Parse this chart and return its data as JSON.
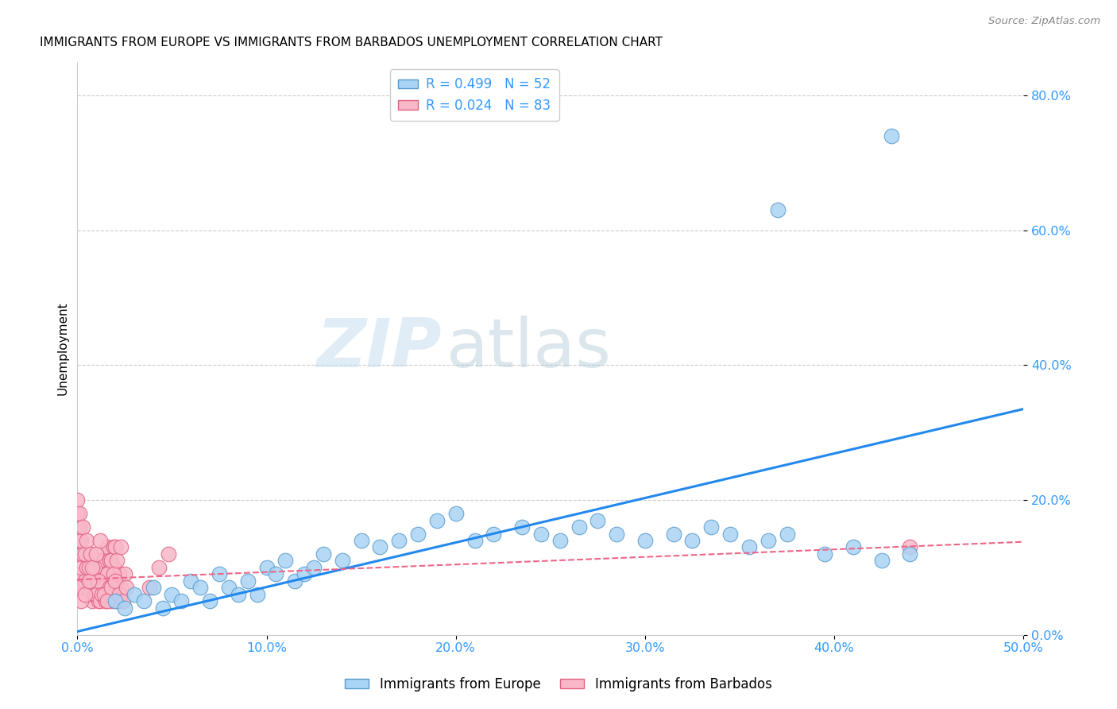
{
  "title": "IMMIGRANTS FROM EUROPE VS IMMIGRANTS FROM BARBADOS UNEMPLOYMENT CORRELATION CHART",
  "source": "Source: ZipAtlas.com",
  "ylabel_label": "Unemployment",
  "xlim": [
    0.0,
    0.5
  ],
  "ylim": [
    0.0,
    0.85
  ],
  "europe_color": "#aad4f5",
  "europe_edge": "#5599cc",
  "barbados_color": "#f9b8c8",
  "barbados_edge": "#e06080",
  "trendline_europe_color": "#2288ee",
  "trendline_barbados_color": "#ee6688",
  "tick_color": "#3399ff",
  "axis_color": "#cccccc",
  "grid_color": "#cccccc",
  "watermark_zip": "ZIP",
  "watermark_atlas": "atlas",
  "europe_trend_x": [
    0.0,
    0.5
  ],
  "europe_trend_y": [
    0.005,
    0.335
  ],
  "barbados_trend_x": [
    0.0,
    0.5
  ],
  "barbados_trend_y": [
    0.082,
    0.138
  ],
  "eu_x": [
    0.02,
    0.025,
    0.03,
    0.035,
    0.04,
    0.045,
    0.05,
    0.055,
    0.06,
    0.065,
    0.07,
    0.075,
    0.08,
    0.085,
    0.09,
    0.095,
    0.1,
    0.105,
    0.11,
    0.115,
    0.12,
    0.125,
    0.13,
    0.14,
    0.15,
    0.16,
    0.17,
    0.18,
    0.19,
    0.2,
    0.21,
    0.22,
    0.235,
    0.245,
    0.255,
    0.265,
    0.275,
    0.285,
    0.3,
    0.315,
    0.325,
    0.335,
    0.345,
    0.355,
    0.365,
    0.375,
    0.395,
    0.41,
    0.425,
    0.44,
    0.37,
    0.43
  ],
  "eu_y": [
    0.05,
    0.04,
    0.06,
    0.05,
    0.07,
    0.04,
    0.06,
    0.05,
    0.08,
    0.07,
    0.05,
    0.09,
    0.07,
    0.06,
    0.08,
    0.06,
    0.1,
    0.09,
    0.11,
    0.08,
    0.09,
    0.1,
    0.12,
    0.11,
    0.14,
    0.13,
    0.14,
    0.15,
    0.17,
    0.18,
    0.14,
    0.15,
    0.16,
    0.15,
    0.14,
    0.16,
    0.17,
    0.15,
    0.14,
    0.15,
    0.14,
    0.16,
    0.15,
    0.13,
    0.14,
    0.15,
    0.12,
    0.13,
    0.11,
    0.12,
    0.63,
    0.74
  ],
  "bar_x": [
    0.0,
    0.002,
    0.003,
    0.005,
    0.007,
    0.009,
    0.011,
    0.013,
    0.015,
    0.017,
    0.019,
    0.021,
    0.023,
    0.0,
    0.001,
    0.002,
    0.004,
    0.006,
    0.008,
    0.01,
    0.012,
    0.014,
    0.016,
    0.018,
    0.02,
    0.022,
    0.0,
    0.001,
    0.003,
    0.005,
    0.007,
    0.009,
    0.011,
    0.013,
    0.015,
    0.017,
    0.019,
    0.021,
    0.023,
    0.025,
    0.0,
    0.001,
    0.002,
    0.004,
    0.006,
    0.008,
    0.01,
    0.012,
    0.014,
    0.016,
    0.018,
    0.02,
    0.022,
    0.0,
    0.001,
    0.003,
    0.005,
    0.007,
    0.009,
    0.011,
    0.013,
    0.015,
    0.017,
    0.019,
    0.021,
    0.023,
    0.0,
    0.002,
    0.004,
    0.006,
    0.008,
    0.01,
    0.012,
    0.014,
    0.016,
    0.018,
    0.02,
    0.022,
    0.024,
    0.026,
    0.038,
    0.043,
    0.048,
    0.44
  ],
  "bar_y": [
    0.08,
    0.09,
    0.07,
    0.1,
    0.08,
    0.06,
    0.11,
    0.09,
    0.07,
    0.12,
    0.1,
    0.08,
    0.06,
    0.14,
    0.12,
    0.1,
    0.08,
    0.06,
    0.05,
    0.07,
    0.09,
    0.11,
    0.13,
    0.05,
    0.07,
    0.09,
    0.16,
    0.14,
    0.12,
    0.1,
    0.08,
    0.06,
    0.05,
    0.07,
    0.09,
    0.11,
    0.13,
    0.05,
    0.07,
    0.09,
    0.18,
    0.16,
    0.14,
    0.12,
    0.1,
    0.08,
    0.06,
    0.05,
    0.07,
    0.09,
    0.11,
    0.13,
    0.05,
    0.2,
    0.18,
    0.16,
    0.14,
    0.12,
    0.1,
    0.08,
    0.06,
    0.05,
    0.07,
    0.09,
    0.11,
    0.13,
    0.07,
    0.05,
    0.06,
    0.08,
    0.1,
    0.12,
    0.14,
    0.06,
    0.05,
    0.07,
    0.08,
    0.06,
    0.05,
    0.07,
    0.07,
    0.1,
    0.12,
    0.13
  ]
}
